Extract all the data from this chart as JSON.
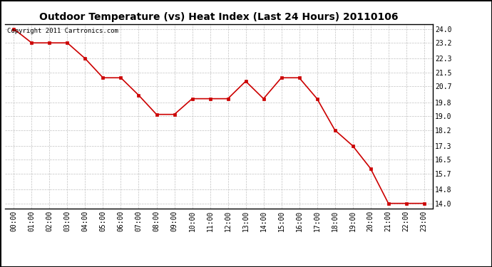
{
  "title": "Outdoor Temperature (vs) Heat Index (Last 24 Hours) 20110106",
  "copyright_text": "Copyright 2011 Cartronics.com",
  "x_labels": [
    "00:00",
    "01:00",
    "02:00",
    "03:00",
    "04:00",
    "05:00",
    "06:00",
    "07:00",
    "08:00",
    "09:00",
    "10:00",
    "11:00",
    "12:00",
    "13:00",
    "14:00",
    "15:00",
    "16:00",
    "17:00",
    "18:00",
    "19:00",
    "20:00",
    "21:00",
    "22:00",
    "23:00"
  ],
  "y_values": [
    24.0,
    23.2,
    23.2,
    23.2,
    22.3,
    21.2,
    21.2,
    20.2,
    19.1,
    19.1,
    20.0,
    20.0,
    20.0,
    21.0,
    20.0,
    21.2,
    21.2,
    20.0,
    18.2,
    17.3,
    16.0,
    14.0,
    14.0,
    14.0
  ],
  "line_color": "#cc0000",
  "marker": "s",
  "marker_size": 3,
  "y_ticks": [
    14.0,
    14.8,
    15.7,
    16.5,
    17.3,
    18.2,
    19.0,
    19.8,
    20.7,
    21.5,
    22.3,
    23.2,
    24.0
  ],
  "ylim": [
    13.72,
    24.28
  ],
  "background_color": "#ffffff",
  "plot_bg_color": "#ffffff",
  "grid_color": "#bbbbbb",
  "title_fontsize": 10,
  "copyright_fontsize": 6.5,
  "tick_fontsize": 7,
  "outer_border_color": "#000000"
}
